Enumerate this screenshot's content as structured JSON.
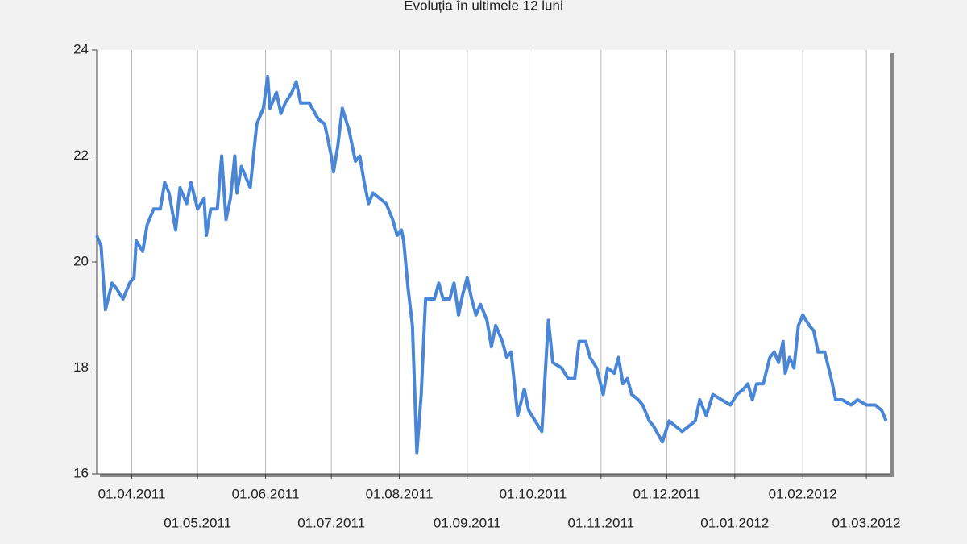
{
  "chart_data": {
    "type": "line",
    "title": "Evoluția în ultimele 12 luni",
    "x": [
      "16.03.2011",
      "18.03.2011",
      "20.03.2011",
      "23.03.2011",
      "25.03.2011",
      "28.03.2011",
      "31.03.2011",
      "02.04.2011",
      "03.04.2011",
      "06.04.2011",
      "08.04.2011",
      "11.04.2011",
      "14.04.2011",
      "16.04.2011",
      "18.04.2011",
      "21.04.2011",
      "23.04.2011",
      "26.04.2011",
      "28.04.2011",
      "01.05.2011",
      "04.05.2011",
      "05.05.2011",
      "07.05.2011",
      "10.05.2011",
      "12.05.2011",
      "14.05.2011",
      "16.05.2011",
      "18.05.2011",
      "19.05.2011",
      "21.05.2011",
      "25.05.2011",
      "28.05.2011",
      "31.05.2011",
      "02.06.2011",
      "03.06.2011",
      "06.06.2011",
      "08.06.2011",
      "10.06.2011",
      "13.06.2011",
      "15.06.2011",
      "17.06.2011",
      "21.06.2011",
      "25.06.2011",
      "28.06.2011",
      "01.07.2011",
      "02.07.2011",
      "04.07.2011",
      "06.07.2011",
      "09.07.2011",
      "12.07.2011",
      "14.07.2011",
      "16.07.2011",
      "18.07.2011",
      "20.07.2011",
      "23.07.2011",
      "26.07.2011",
      "29.07.2011",
      "31.07.2011",
      "02.08.2011",
      "03.08.2011",
      "05.08.2011",
      "07.08.2011",
      "09.08.2011",
      "11.08.2011",
      "13.08.2011",
      "15.08.2011",
      "17.08.2011",
      "19.08.2011",
      "21.08.2011",
      "24.08.2011",
      "26.08.2011",
      "28.08.2011",
      "30.08.2011",
      "01.09.2011",
      "03.09.2011",
      "05.09.2011",
      "07.09.2011",
      "10.09.2011",
      "12.09.2011",
      "14.09.2011",
      "17.09.2011",
      "19.09.2011",
      "21.09.2011",
      "22.09.2011",
      "24.09.2011",
      "27.09.2011",
      "29.09.2011",
      "02.10.2011",
      "05.10.2011",
      "08.10.2011",
      "10.10.2011",
      "14.10.2011",
      "17.10.2011",
      "20.10.2011",
      "22.10.2011",
      "25.10.2011",
      "27.10.2011",
      "30.10.2011",
      "02.11.2011",
      "04.11.2011",
      "07.11.2011",
      "09.11.2011",
      "11.11.2011",
      "13.11.2011",
      "15.11.2011",
      "18.11.2011",
      "20.11.2011",
      "23.11.2011",
      "25.11.2011",
      "29.11.2011",
      "02.12.2011",
      "05.12.2011",
      "08.12.2011",
      "11.12.2011",
      "14.12.2011",
      "16.12.2011",
      "19.12.2011",
      "22.12.2011",
      "26.12.2011",
      "30.12.2011",
      "02.01.2012",
      "05.01.2012",
      "07.01.2012",
      "09.01.2012",
      "11.01.2012",
      "14.01.2012",
      "17.01.2012",
      "19.01.2012",
      "21.01.2012",
      "23.01.2012",
      "24.01.2012",
      "26.01.2012",
      "28.01.2012",
      "30.01.2012",
      "01.02.2012",
      "04.02.2012",
      "06.02.2012",
      "08.02.2012",
      "11.02.2012",
      "14.02.2012",
      "16.02.2012",
      "19.02.2012",
      "23.02.2012",
      "26.02.2012",
      "01.03.2012",
      "05.03.2012",
      "08.03.2012",
      "10.03.2012"
    ],
    "values": [
      20.5,
      20.3,
      19.1,
      19.6,
      19.5,
      19.3,
      19.6,
      19.7,
      20.4,
      20.2,
      20.7,
      21.0,
      21.0,
      21.5,
      21.3,
      20.6,
      21.4,
      21.1,
      21.5,
      21.0,
      21.2,
      20.5,
      21.0,
      21.0,
      22.0,
      20.8,
      21.2,
      22.0,
      21.3,
      21.8,
      21.4,
      22.6,
      22.9,
      23.5,
      22.9,
      23.2,
      22.8,
      23.0,
      23.2,
      23.4,
      23.0,
      23.0,
      22.7,
      22.6,
      22.0,
      21.7,
      22.2,
      22.9,
      22.5,
      21.9,
      22.0,
      21.5,
      21.1,
      21.3,
      21.2,
      21.1,
      20.8,
      20.5,
      20.6,
      20.4,
      19.5,
      18.8,
      16.4,
      17.5,
      19.3,
      19.3,
      19.3,
      19.6,
      19.3,
      19.3,
      19.6,
      19.0,
      19.4,
      19.7,
      19.3,
      19.0,
      19.2,
      18.9,
      18.4,
      18.8,
      18.5,
      18.2,
      18.3,
      17.9,
      17.1,
      17.6,
      17.2,
      17.0,
      16.8,
      18.9,
      18.1,
      18.0,
      17.8,
      17.8,
      18.5,
      18.5,
      18.2,
      18.0,
      17.5,
      18.0,
      17.9,
      18.2,
      17.7,
      17.8,
      17.5,
      17.4,
      17.3,
      17.0,
      16.9,
      16.6,
      17.0,
      16.9,
      16.8,
      16.9,
      17.0,
      17.4,
      17.1,
      17.5,
      17.4,
      17.3,
      17.5,
      17.6,
      17.7,
      17.4,
      17.7,
      17.7,
      18.2,
      18.3,
      18.1,
      18.5,
      17.9,
      18.2,
      18.0,
      18.8,
      19.0,
      18.8,
      18.7,
      18.3,
      18.3,
      17.8,
      17.4,
      17.4,
      17.3,
      17.4,
      17.3,
      17.3,
      17.2,
      17.0
    ],
    "color": "#4a86d8",
    "xlim": [
      "16.03.2011",
      "12.03.2012"
    ],
    "xticks": [
      "01.04.2011",
      "01.05.2011",
      "01.06.2011",
      "01.07.2011",
      "01.08.2011",
      "01.09.2011",
      "01.10.2011",
      "01.11.2011",
      "01.12.2011",
      "01.01.2012",
      "01.02.2012",
      "01.03.2012"
    ],
    "ylim": [
      16,
      24
    ],
    "yticks": [
      16,
      18,
      20,
      22,
      24
    ],
    "grid": true
  }
}
